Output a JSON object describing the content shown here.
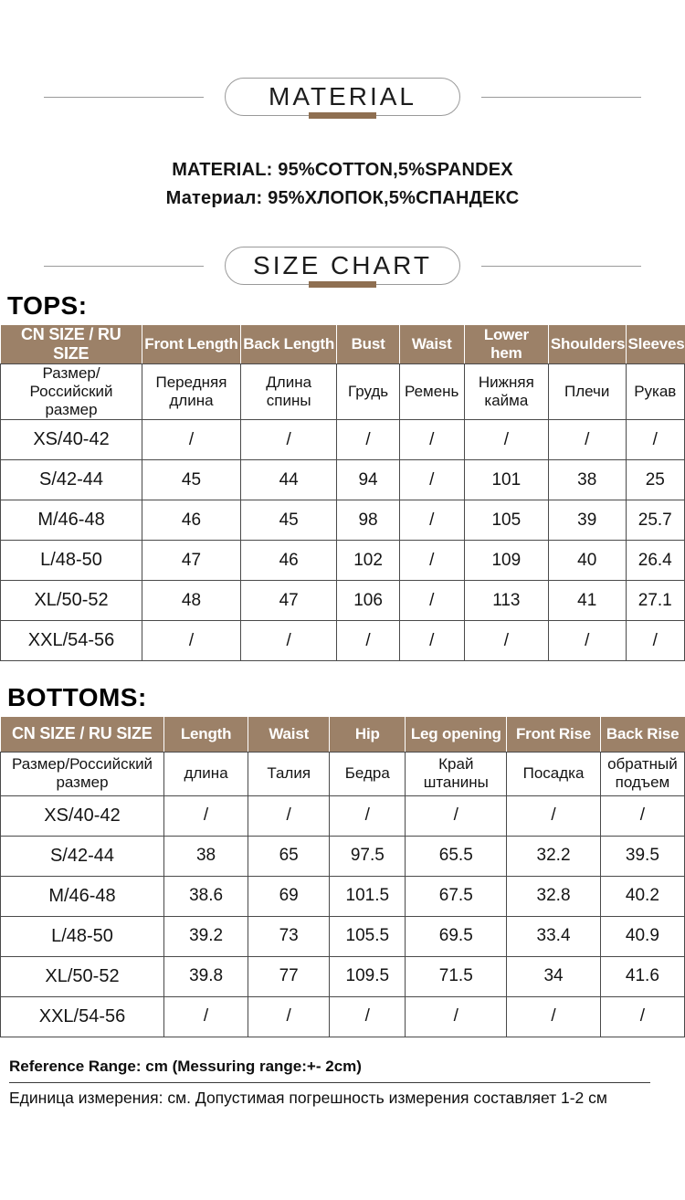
{
  "colors": {
    "table_header_bg": "#9c8168",
    "accent_bar": "#8e6f51"
  },
  "material": {
    "title": "MATERIAL",
    "composition_en": "MATERIAL: 95%COTTON,5%SPANDEX",
    "composition_ru": "Материал: 95%ХЛОПОК,5%СПАНДЕКС"
  },
  "size_chart": {
    "title": "SIZE CHART"
  },
  "tops": {
    "label": "TOPS:",
    "columns_en": [
      "CN SIZE / RU SIZE",
      "Front Length",
      "Back Length",
      "Bust",
      "Waist",
      "Lower hem",
      "Shoulders",
      "Sleeves"
    ],
    "columns_ru": [
      "Размер/Российский размер",
      "Передняя длина",
      "Длина спины",
      "Грудь",
      "Ремень",
      "Нижняя кайма",
      "Плечи",
      "Рукав"
    ],
    "rows": [
      [
        "XS/40-42",
        "/",
        "/",
        "/",
        "/",
        "/",
        "/",
        "/"
      ],
      [
        "S/42-44",
        "45",
        "44",
        "94",
        "/",
        "101",
        "38",
        "25"
      ],
      [
        "M/46-48",
        "46",
        "45",
        "98",
        "/",
        "105",
        "39",
        "25.7"
      ],
      [
        "L/48-50",
        "47",
        "46",
        "102",
        "/",
        "109",
        "40",
        "26.4"
      ],
      [
        "XL/50-52",
        "48",
        "47",
        "106",
        "/",
        "113",
        "41",
        "27.1"
      ],
      [
        "XXL/54-56",
        "/",
        "/",
        "/",
        "/",
        "/",
        "/",
        "/"
      ]
    ]
  },
  "bottoms": {
    "label": "BOTTOMS:",
    "columns_en": [
      "CN SIZE / RU SIZE",
      "Length",
      "Waist",
      "Hip",
      "Leg opening",
      "Front Rise",
      "Back Rise"
    ],
    "columns_ru": [
      "Размер/Российский размер",
      "длина",
      "Талия",
      "Бедра",
      "Край штанины",
      "Посадка",
      "обратный подъем"
    ],
    "rows": [
      [
        "XS/40-42",
        "/",
        "/",
        "/",
        "/",
        "/",
        "/"
      ],
      [
        "S/42-44",
        "38",
        "65",
        "97.5",
        "65.5",
        "32.2",
        "39.5"
      ],
      [
        "M/46-48",
        "38.6",
        "69",
        "101.5",
        "67.5",
        "32.8",
        "40.2"
      ],
      [
        "L/48-50",
        "39.2",
        "73",
        "105.5",
        "69.5",
        "33.4",
        "40.9"
      ],
      [
        "XL/50-52",
        "39.8",
        "77",
        "109.5",
        "71.5",
        "34",
        "41.6"
      ],
      [
        "XXL/54-56",
        "/",
        "/",
        "/",
        "/",
        "/",
        "/"
      ]
    ]
  },
  "footer": {
    "note_en": "Reference Range: cm (Messuring range:+- 2cm)",
    "note_ru": "Единица измерения: см. Допустимая погрешность измерения составляет 1-2 см"
  }
}
